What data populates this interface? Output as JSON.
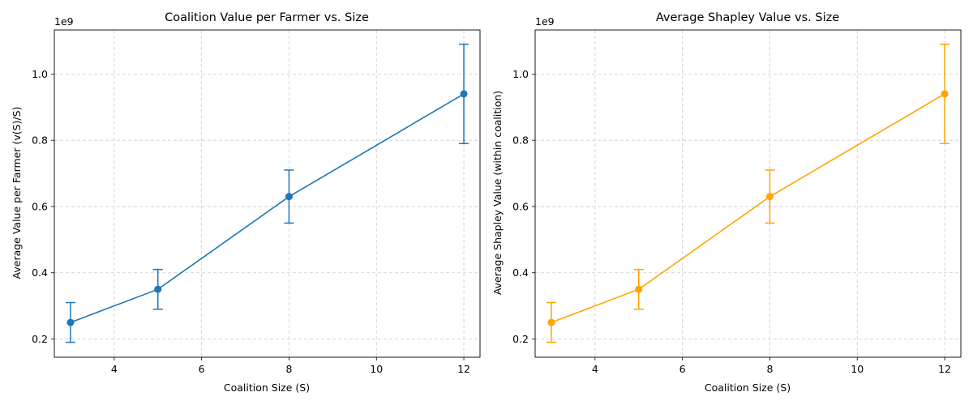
{
  "chart_data": [
    {
      "type": "line",
      "title": "Coalition Value per Farmer vs. Size",
      "xlabel": "Coalition Size (S)",
      "ylabel": "Average Value per Farmer (v(S)/S)",
      "offset_text": "1e9",
      "xlim": [
        2.63,
        12.37
      ],
      "ylim": [
        0.145,
        1.133
      ],
      "xticks": [
        4,
        6,
        8,
        10,
        12
      ],
      "xtick_labels": [
        "4",
        "6",
        "8",
        "10",
        "12"
      ],
      "yticks": [
        0.2,
        0.4,
        0.6,
        0.8,
        1.0
      ],
      "ytick_labels": [
        "0.2",
        "0.4",
        "0.6",
        "0.8",
        "1.0"
      ],
      "grid": true,
      "color": "#1f77b4",
      "x": [
        3,
        5,
        8,
        12
      ],
      "y": [
        0.25,
        0.35,
        0.63,
        0.94
      ],
      "yerr": [
        0.06,
        0.06,
        0.08,
        0.15
      ]
    },
    {
      "type": "line",
      "title": "Average Shapley Value vs. Size",
      "xlabel": "Coalition Size (S)",
      "ylabel": "Average Shapley Value (within coalition)",
      "offset_text": "1e9",
      "xlim": [
        2.63,
        12.37
      ],
      "ylim": [
        0.145,
        1.133
      ],
      "xticks": [
        4,
        6,
        8,
        10,
        12
      ],
      "xtick_labels": [
        "4",
        "6",
        "8",
        "10",
        "12"
      ],
      "yticks": [
        0.2,
        0.4,
        0.6,
        0.8,
        1.0
      ],
      "ytick_labels": [
        "0.2",
        "0.4",
        "0.6",
        "0.8",
        "1.0"
      ],
      "grid": true,
      "color": "#ffa500",
      "x": [
        3,
        5,
        8,
        12
      ],
      "y": [
        0.25,
        0.35,
        0.63,
        0.94
      ],
      "yerr": [
        0.06,
        0.06,
        0.08,
        0.15
      ]
    }
  ]
}
